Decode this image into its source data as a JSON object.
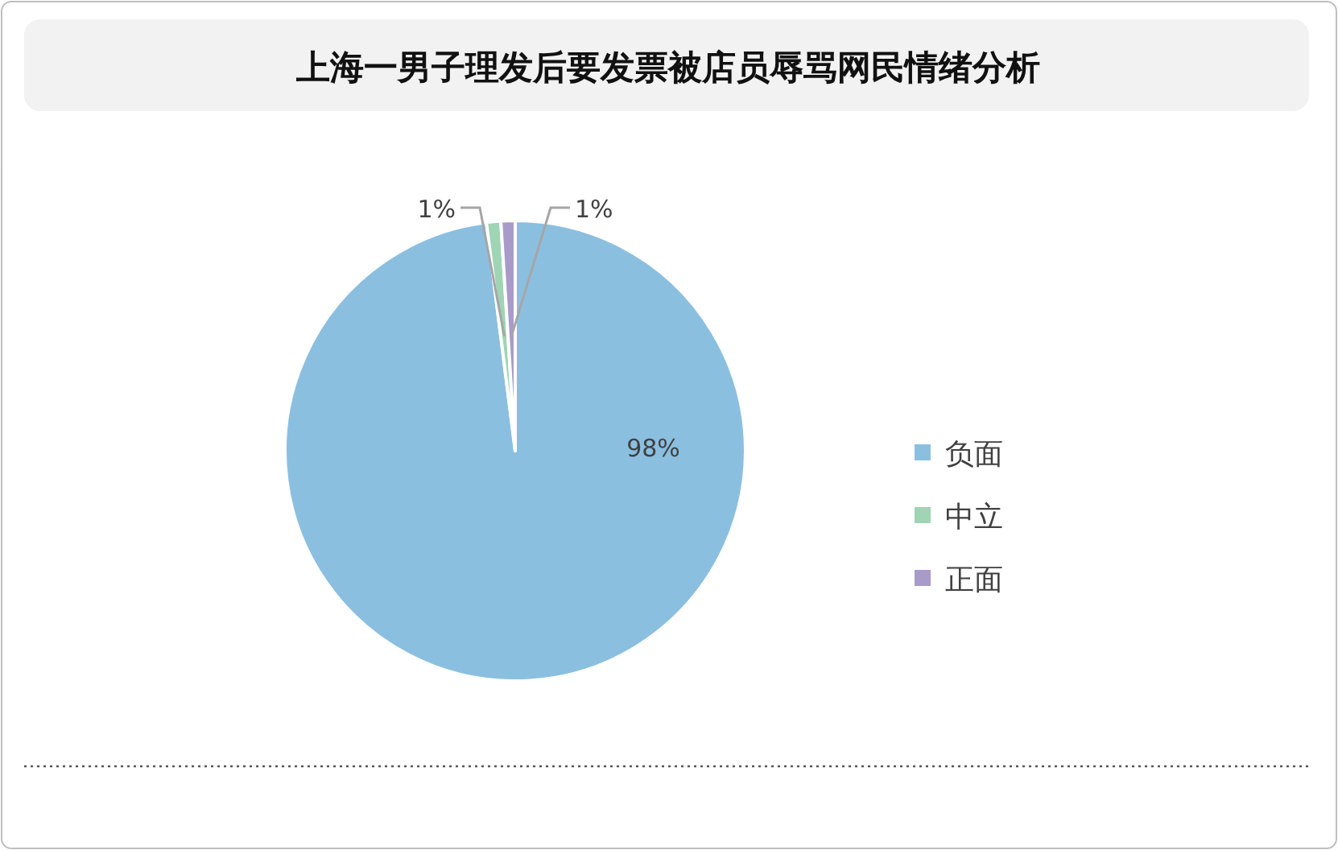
{
  "chart_data": {
    "type": "pie",
    "title": "上海一男子理发后要发票被店员辱骂网民情绪分析",
    "categories": [
      "负面",
      "中立",
      "正面"
    ],
    "values": [
      98,
      1,
      1
    ],
    "colors": [
      "#8bbfe0",
      "#9fd4b4",
      "#a99bc9"
    ],
    "value_labels": [
      "98%",
      "1%",
      "1%"
    ],
    "legend": "right"
  }
}
